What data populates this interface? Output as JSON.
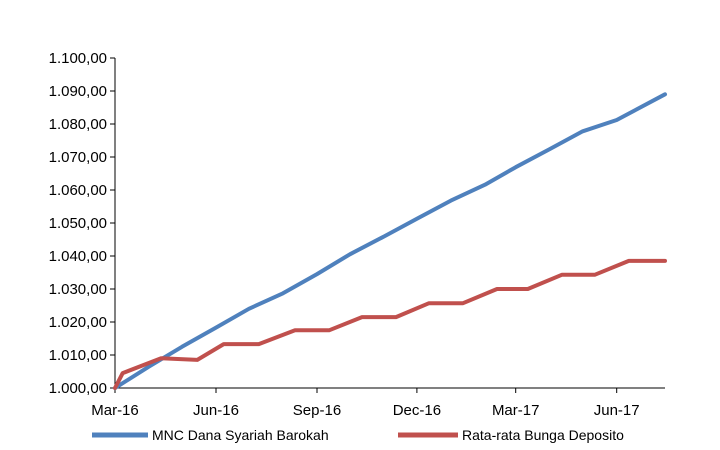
{
  "chart_data": {
    "type": "line",
    "title": "",
    "xlabel": "",
    "ylabel": "",
    "ylim": [
      1000,
      1100
    ],
    "yticks": [
      1000,
      1010,
      1020,
      1030,
      1040,
      1050,
      1060,
      1070,
      1080,
      1090,
      1100
    ],
    "ytick_labels": [
      "1.000,00",
      "1.010,00",
      "1.020,00",
      "1.030,00",
      "1.040,00",
      "1.050,00",
      "1.060,00",
      "1.070,00",
      "1.080,00",
      "1.090,00",
      "1.100,00"
    ],
    "x_range": [
      "2016-03-01",
      "2017-07-15"
    ],
    "xtick_labels": [
      {
        "date": "2016-03-01",
        "label": "Mar-16"
      },
      {
        "date": "2016-06-01",
        "label": "Jun-16"
      },
      {
        "date": "2016-09-01",
        "label": "Sep-16"
      },
      {
        "date": "2016-12-01",
        "label": "Dec-16"
      },
      {
        "date": "2017-03-01",
        "label": "Mar-17"
      },
      {
        "date": "2017-06-01",
        "label": "Jun-17"
      }
    ],
    "grid": false,
    "legend": "bottom",
    "series": [
      {
        "name": "MNC Dana Syariah Barokah",
        "color": "#4F81BD",
        "points": [
          [
            "2016-03-01",
            1000.0
          ],
          [
            "2016-04-01",
            1006.5
          ],
          [
            "2016-05-01",
            1012.5
          ],
          [
            "2016-06-01",
            1018.3
          ],
          [
            "2016-07-01",
            1024.0
          ],
          [
            "2016-08-01",
            1028.7
          ],
          [
            "2016-09-01",
            1034.5
          ],
          [
            "2016-10-01",
            1040.5
          ],
          [
            "2016-11-01",
            1045.9
          ],
          [
            "2016-12-01",
            1051.3
          ],
          [
            "2017-01-01",
            1056.8
          ],
          [
            "2017-02-01",
            1061.6
          ],
          [
            "2017-03-01",
            1066.9
          ],
          [
            "2017-04-01",
            1072.4
          ],
          [
            "2017-05-01",
            1077.8
          ],
          [
            "2017-06-01",
            1081.2
          ],
          [
            "2017-07-15",
            1089.0
          ]
        ]
      },
      {
        "name": "Rata-rata Bunga Deposito",
        "color": "#C0504D",
        "points": [
          [
            "2016-03-01",
            1000.0
          ],
          [
            "2016-03-08",
            1004.5
          ],
          [
            "2016-04-12",
            1009.0
          ],
          [
            "2016-05-15",
            1008.5
          ],
          [
            "2016-06-08",
            1013.3
          ],
          [
            "2016-07-10",
            1013.3
          ],
          [
            "2016-08-12",
            1017.5
          ],
          [
            "2016-09-12",
            1017.5
          ],
          [
            "2016-10-12",
            1021.5
          ],
          [
            "2016-11-12",
            1021.5
          ],
          [
            "2016-12-12",
            1025.7
          ],
          [
            "2017-01-12",
            1025.7
          ],
          [
            "2017-02-12",
            1030.0
          ],
          [
            "2017-03-12",
            1030.0
          ],
          [
            "2017-04-12",
            1034.3
          ],
          [
            "2017-05-12",
            1034.3
          ],
          [
            "2017-06-12",
            1038.5
          ],
          [
            "2017-07-15",
            1038.5
          ]
        ]
      }
    ]
  }
}
